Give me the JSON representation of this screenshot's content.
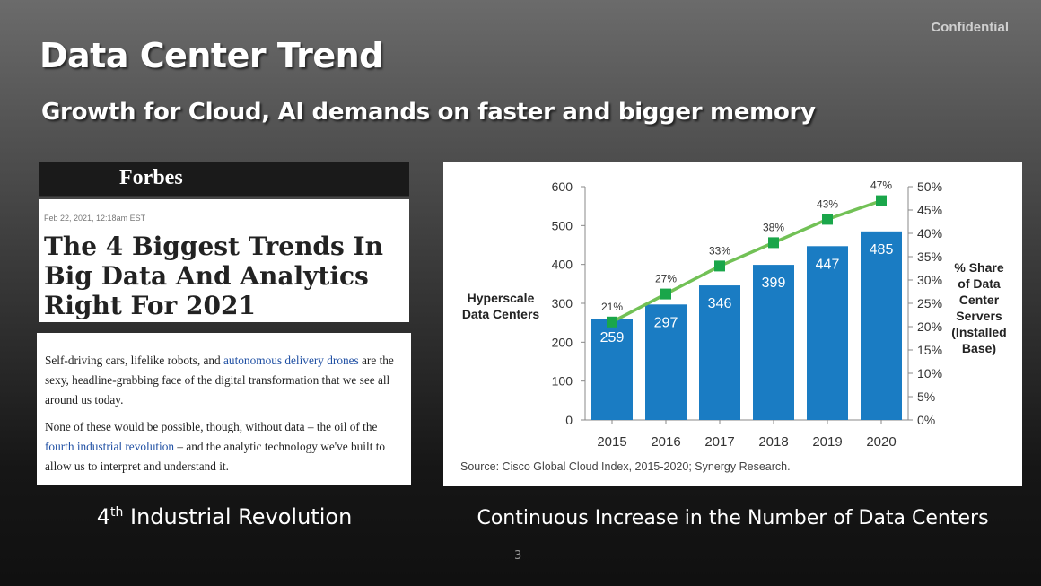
{
  "slide": {
    "confidential": "Confidential",
    "title": "Data Center Trend",
    "subtitle": "Growth for Cloud, AI demands on faster and bigger memory",
    "page_number": "3"
  },
  "forbes": {
    "logo": "Forbes",
    "date": "Feb 22, 2021, 12:18am EST",
    "headline": "The 4 Biggest Trends In Big Data And Analytics Right For 2021",
    "para1_pre": "Self-driving cars, lifelike robots, and ",
    "para1_link": "autonomous delivery drones",
    "para1_post": " are the sexy, headline-grabbing face of the digital transformation that we see all around us today.",
    "para2_pre": "None of these would be possible, though, without data – the oil of the ",
    "para2_link": "fourth industrial revolution",
    "para2_post": " – and the analytic technology we've built to allow us to interpret and understand it."
  },
  "captions": {
    "left_num": "4",
    "left_sup": "th",
    "left_rest": " Industrial Revolution",
    "right": "Continuous Increase in the Number of Data Centers"
  },
  "chart_data": {
    "type": "bar",
    "categories": [
      "2015",
      "2016",
      "2017",
      "2018",
      "2019",
      "2020"
    ],
    "series": [
      {
        "name": "Hyperscale Data Centers",
        "type": "bar",
        "axis": "left",
        "values": [
          259,
          297,
          346,
          399,
          447,
          485
        ],
        "color": "#1a7cc3"
      },
      {
        "name": "% Share of Data Center Servers (Installed Base)",
        "type": "line",
        "axis": "right",
        "values": [
          21,
          27,
          33,
          38,
          43,
          47
        ],
        "labels": [
          "21%",
          "27%",
          "33%",
          "38%",
          "43%",
          "47%"
        ],
        "color": "#72c156",
        "marker_color": "#1aa64a"
      }
    ],
    "ylabel": "Hyperscale Data Centers",
    "ylabel_lines": [
      "Hyperscale",
      "Data Centers"
    ],
    "y2label": "% Share of Data Center Servers (Installed Base)",
    "y2label_lines": [
      "% Share",
      "of Data",
      "Center",
      "Servers",
      "(Installed",
      "Base)"
    ],
    "ylim": [
      0,
      600
    ],
    "yticks": [
      "0",
      "100",
      "200",
      "300",
      "400",
      "500",
      "600"
    ],
    "y2lim": [
      0,
      50
    ],
    "y2ticks": [
      "0%",
      "5%",
      "10%",
      "15%",
      "20%",
      "25%",
      "30%",
      "35%",
      "40%",
      "45%",
      "50%"
    ],
    "source": "Source: Cisco Global Cloud Index, 2015-2020; Synergy Research.",
    "grid": false
  }
}
